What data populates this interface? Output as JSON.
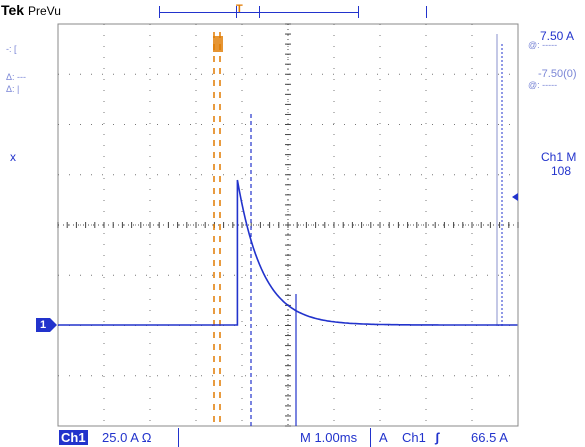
{
  "header": {
    "brand": "Tek",
    "mode": "PreVu",
    "trigger_position_marker": "T"
  },
  "colors": {
    "trace": "#2233cc",
    "cursor": "#e07a00",
    "grid": "#555555",
    "background": "#ffffff"
  },
  "icons": {
    "trigger_level": "left-arrow-icon",
    "channel_marker": "ch1-ground-marker-icon",
    "slope": "rising-edge-icon"
  },
  "right_readouts": {
    "scale_top": "7.50 A",
    "scale_top_sub": "@: -----",
    "scale_mid": "-7.50(0)",
    "scale_mid_sub": "@: -----",
    "measurement_label": "Ch1 M",
    "measurement_value": "108"
  },
  "left_readouts": {
    "mark1": "-: [",
    "mark2": "Δ: ---",
    "mark3": "Δ: |",
    "cursor_x": "x"
  },
  "channel_marker": "1",
  "status_bar": {
    "channel": "Ch1",
    "vertical_scale": "25.0 A Ω",
    "timebase": "M 1.00ms",
    "trigger_source_label": "A",
    "trigger_source": "Ch1",
    "trigger_slope": "ʃ",
    "trigger_level": "66.5 A"
  },
  "waveform": {
    "baseline_level": 0,
    "peak_level": 1,
    "pulse_start_div": 3.9,
    "decay_tau_div": 0.55
  }
}
